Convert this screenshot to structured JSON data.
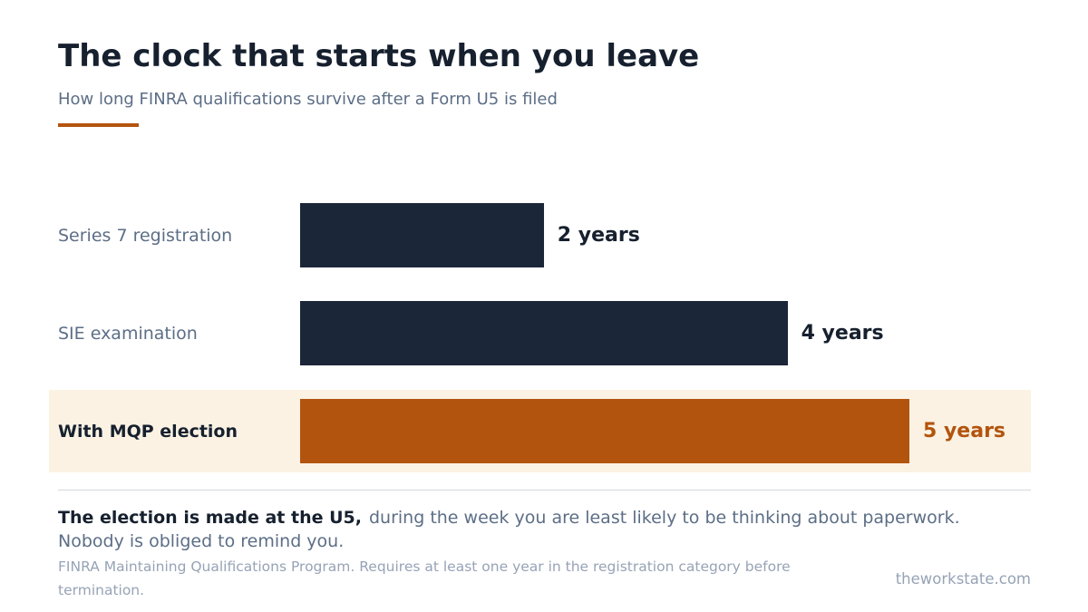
{
  "title": "The clock that starts when you leave",
  "subtitle": "How long FINRA qualifications survive after a Form U5 is filed",
  "colors": {
    "navy": "#1c2639",
    "accent": "#b3540e",
    "highlight_bg": "#fbf2e3",
    "label_muted": "#5c6e86",
    "label_strong": "#16202e"
  },
  "chart_data": {
    "type": "bar",
    "orientation": "horizontal",
    "categories": [
      "Series 7 registration",
      "SIE examination",
      "With MQP election"
    ],
    "values": [
      2,
      4,
      5
    ],
    "value_labels": [
      "2 years",
      "4 years",
      "5 years"
    ],
    "highlighted_category": "With MQP election",
    "xlim": [
      0,
      5
    ],
    "grid": false
  },
  "note": {
    "lead": "The election is made at the U5,",
    "body": "during the week you are least likely to be thinking about paperwork. Nobody is obliged to remind you."
  },
  "source": "FINRA Maintaining Qualifications Program. Requires at least one year in the registration category before termination.",
  "site": "theworkstate.com"
}
